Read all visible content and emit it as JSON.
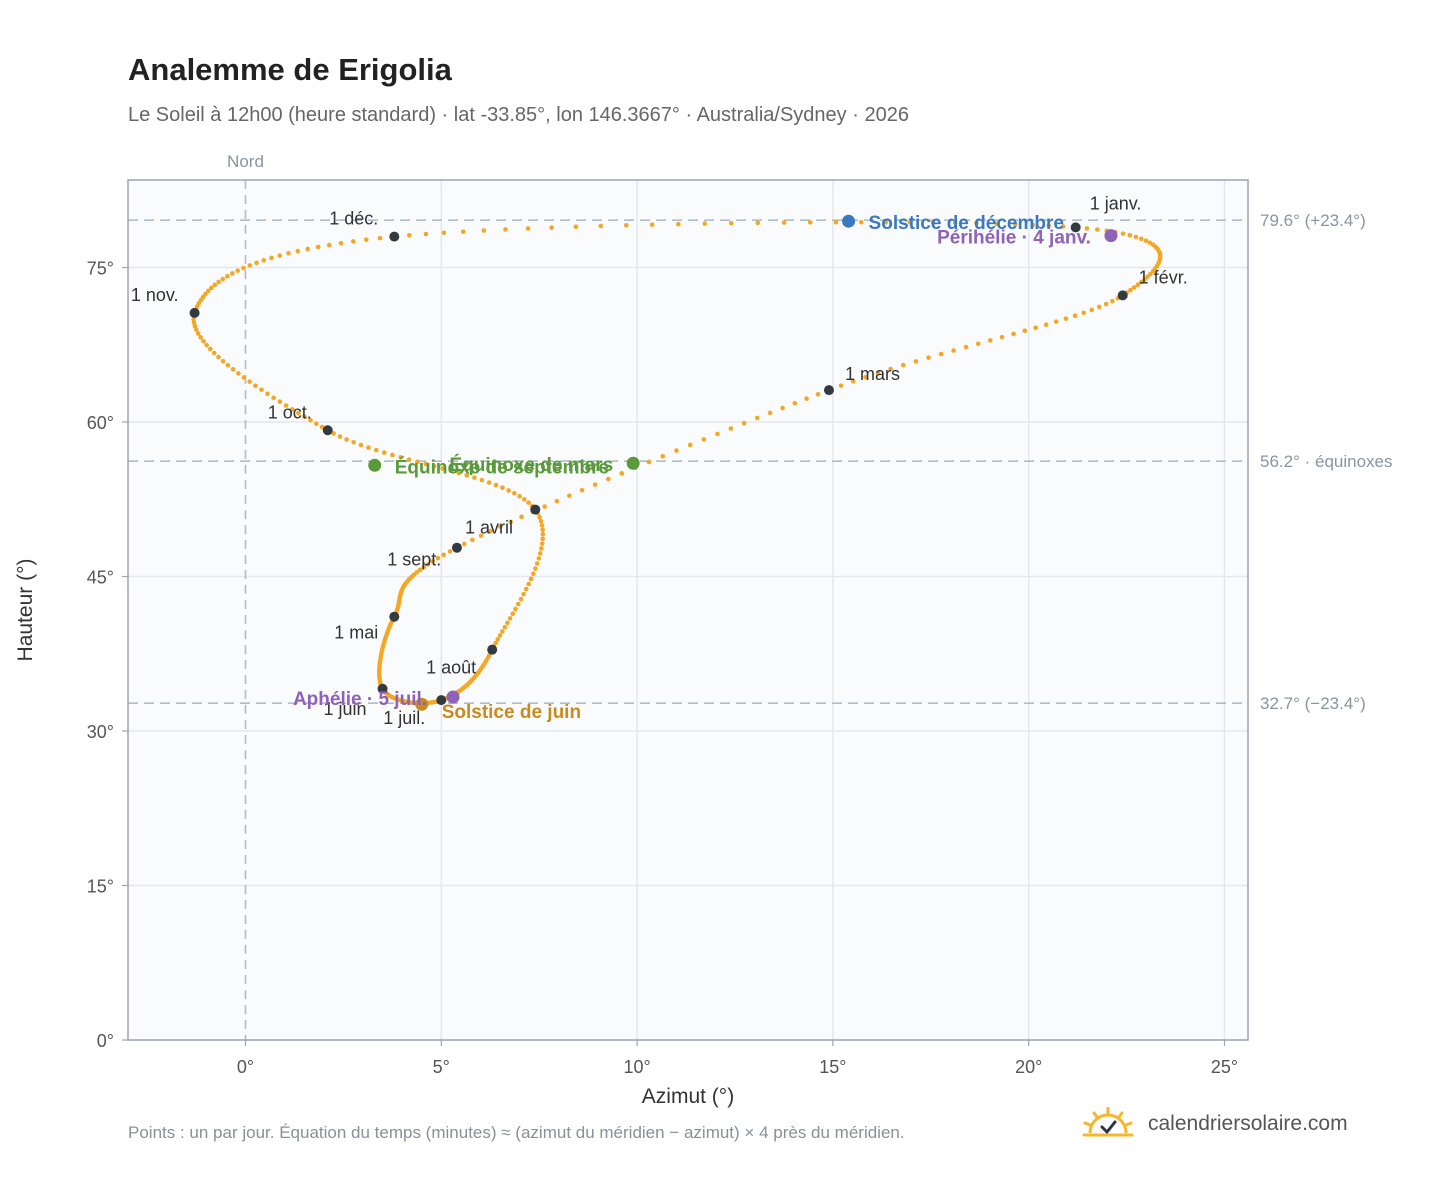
{
  "header": {
    "title": "Analemme de Erigolia",
    "subtitle": "Le Soleil à 12h00 (heure standard) · lat -33.85°, lon 146.3667° · Australia/Sydney · 2026"
  },
  "footer": {
    "note": "Points : un par jour. Équation du temps (minutes) ≈ (azimut du méridien − azimut) × 4 près du méridien.",
    "brand": "calendriersolaire.com",
    "brand_icon": "sun-check-icon"
  },
  "colors": {
    "path": "#f5a623",
    "month_marker": "#333a40",
    "solstice_december": "#3a78c0",
    "solstice_june": "#c98a1e",
    "equinox": "#5a9a3a",
    "apsis": "#8e62b8",
    "reference_line": "#b0bcc6"
  },
  "chart_data": {
    "type": "scatter",
    "xlabel": "Azimut (°)",
    "ylabel": "Hauteur (°)",
    "xlim": [
      -3,
      25.6
    ],
    "ylim": [
      0,
      83.5
    ],
    "x_ticks": [
      {
        "value": 0,
        "label": "0°"
      },
      {
        "value": 5,
        "label": "5°"
      },
      {
        "value": 10,
        "label": "10°"
      },
      {
        "value": 15,
        "label": "15°"
      },
      {
        "value": 20,
        "label": "20°"
      },
      {
        "value": 25,
        "label": "25°"
      }
    ],
    "y_ticks": [
      {
        "value": 0,
        "label": "0°"
      },
      {
        "value": 15,
        "label": "15°"
      },
      {
        "value": 30,
        "label": "30°"
      },
      {
        "value": 45,
        "label": "45°"
      },
      {
        "value": 60,
        "label": "60°"
      },
      {
        "value": 75,
        "label": "75°"
      }
    ],
    "grid": true,
    "north_line": {
      "azimuth": 0,
      "label": "Nord"
    },
    "reference_lines": [
      {
        "altitude": 79.6,
        "label": "79.6° (+23.4°)"
      },
      {
        "altitude": 56.2,
        "label": "56.2° · équinoxes"
      },
      {
        "altitude": 32.7,
        "label": "32.7° (−23.4°)"
      }
    ],
    "months": [
      {
        "label": "1 janv.",
        "azimuth": 21.2,
        "altitude": 78.9
      },
      {
        "label": "1 févr.",
        "azimuth": 22.4,
        "altitude": 72.3
      },
      {
        "label": "1 mars",
        "azimuth": 14.9,
        "altitude": 63.1
      },
      {
        "label": "1 avril",
        "azimuth": 5.4,
        "altitude": 47.8
      },
      {
        "label": "1 mai",
        "azimuth": 3.8,
        "altitude": 41.1
      },
      {
        "label": "1 juin",
        "azimuth": 3.5,
        "altitude": 34.1
      },
      {
        "label": "1 juil.",
        "azimuth": 5.0,
        "altitude": 33.0
      },
      {
        "label": "1 août",
        "azimuth": 6.3,
        "altitude": 37.9
      },
      {
        "label": "1 sept.",
        "azimuth": 7.4,
        "altitude": 51.5
      },
      {
        "label": "1 oct.",
        "azimuth": 2.1,
        "altitude": 59.2
      },
      {
        "label": "1 nov.",
        "azimuth": -1.3,
        "altitude": 70.6
      },
      {
        "label": "1 déc.",
        "azimuth": 3.8,
        "altitude": 78.0
      }
    ],
    "events": [
      {
        "label": "Solstice de décembre",
        "azimuth": 15.4,
        "altitude": 79.5,
        "color_key": "solstice_december"
      },
      {
        "label": "Périhélie · 4 janv.",
        "azimuth": 22.1,
        "altitude": 78.1,
        "color_key": "apsis"
      },
      {
        "label": "Équinoxe de mars",
        "azimuth": 9.9,
        "altitude": 56.0,
        "color_key": "equinox"
      },
      {
        "label": "Équinoxe de septembre",
        "azimuth": 3.3,
        "altitude": 55.8,
        "color_key": "equinox"
      },
      {
        "label": "Solstice de juin",
        "azimuth": 4.5,
        "altitude": 32.6,
        "color_key": "solstice_june"
      },
      {
        "label": "Aphélie · 5 juil.",
        "azimuth": 5.3,
        "altitude": 33.3,
        "color_key": "apsis"
      }
    ]
  }
}
